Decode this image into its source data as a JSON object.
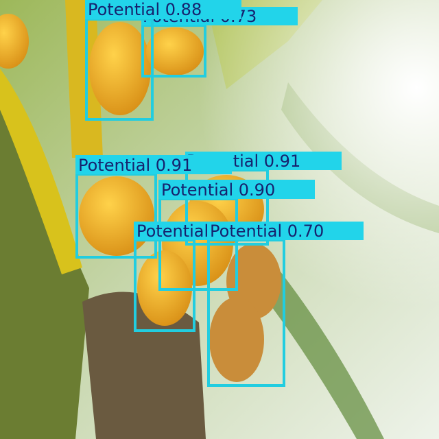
{
  "detections": [
    {
      "label": "Potential 0.73"
    },
    {
      "label": "Potential 0.88"
    },
    {
      "label": "Potential 0.91"
    },
    {
      "label": "Potential 0.91"
    },
    {
      "label": "Potential 0.90"
    },
    {
      "label": "Potential"
    },
    {
      "label": "Potential 0.70"
    }
  ]
}
